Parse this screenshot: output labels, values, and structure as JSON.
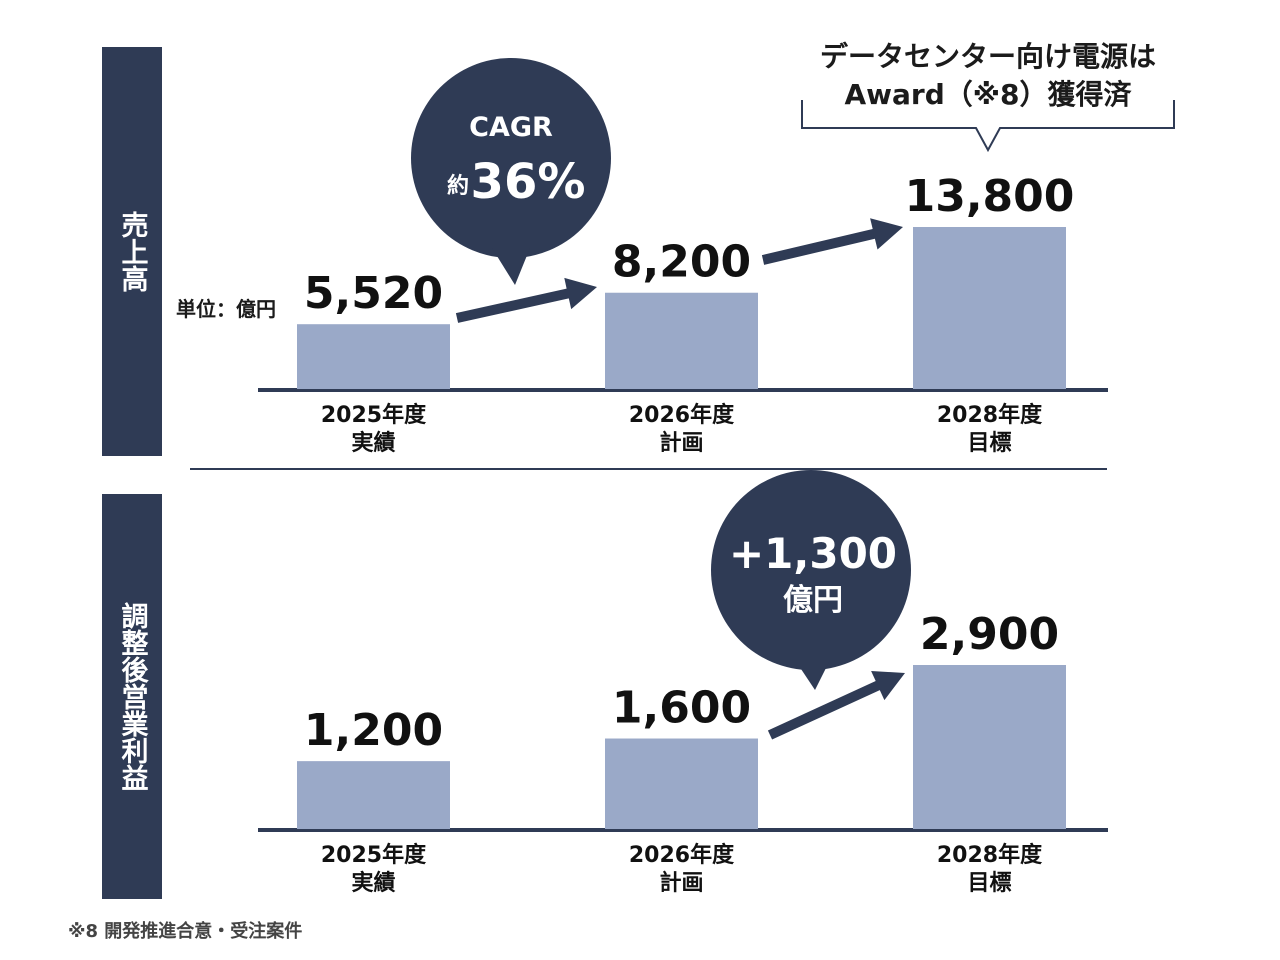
{
  "unit": "単位：億円",
  "award": {
    "line1": "データセンター向け電源は",
    "line2": "Award（※8）獲得済"
  },
  "footnote": "※8 開発推進合意・受注案件",
  "chart_data": [
    {
      "type": "bar",
      "panel_label": "売上高",
      "categories": [
        {
          "year": "2025年度",
          "sub": "実績"
        },
        {
          "year": "2026年度",
          "sub": "計画"
        },
        {
          "year": "2028年度",
          "sub": "目標"
        }
      ],
      "values": [
        5520,
        8200,
        13800
      ],
      "value_labels": [
        "5,520",
        "8,200",
        "13,800"
      ],
      "bubble": {
        "line1": "CAGR",
        "prefix": "約",
        "value": "36%"
      },
      "colors": {
        "bar": "#9aa9c8",
        "accent": "#2f3b55"
      }
    },
    {
      "type": "bar",
      "panel_label": "調整後営業利益",
      "categories": [
        {
          "year": "2025年度",
          "sub": "実績"
        },
        {
          "year": "2026年度",
          "sub": "計画"
        },
        {
          "year": "2028年度",
          "sub": "目標"
        }
      ],
      "values": [
        1200,
        1600,
        2900
      ],
      "value_labels": [
        "1,200",
        "1,600",
        "2,900"
      ],
      "bubble": {
        "line1": "+1,300",
        "line2": "億円"
      },
      "colors": {
        "bar": "#9aa9c8",
        "accent": "#2f3b55"
      }
    }
  ]
}
